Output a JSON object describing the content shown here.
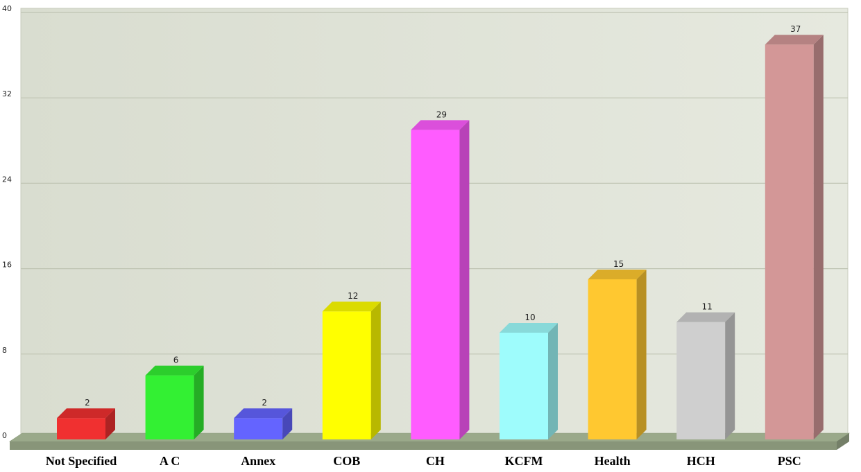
{
  "chart_data": {
    "type": "bar",
    "categories": [
      "Not Specified",
      "A C",
      "Annex",
      "COB",
      "CH",
      "KCFM",
      "Health",
      "HCH",
      "PSC"
    ],
    "values": [
      2,
      6,
      2,
      12,
      29,
      10,
      15,
      11,
      37
    ],
    "data_labels": [
      "2",
      "6",
      "2",
      "12",
      "29",
      "10",
      "15",
      "11",
      "37"
    ],
    "colors": [
      "#f03030",
      "#33f033",
      "#6464ff",
      "#ffff00",
      "#ff5cff",
      "#9efcfc",
      "#ffc830",
      "#cfcfcf",
      "#d39797"
    ],
    "yticks": [
      0,
      8,
      16,
      24,
      32,
      40
    ],
    "ylim": [
      0,
      40
    ],
    "grid": true,
    "style": "3d",
    "plot_background": "#dfe3d6",
    "floor_color": "#9aa98a",
    "title": "",
    "xlabel": "",
    "ylabel": ""
  }
}
